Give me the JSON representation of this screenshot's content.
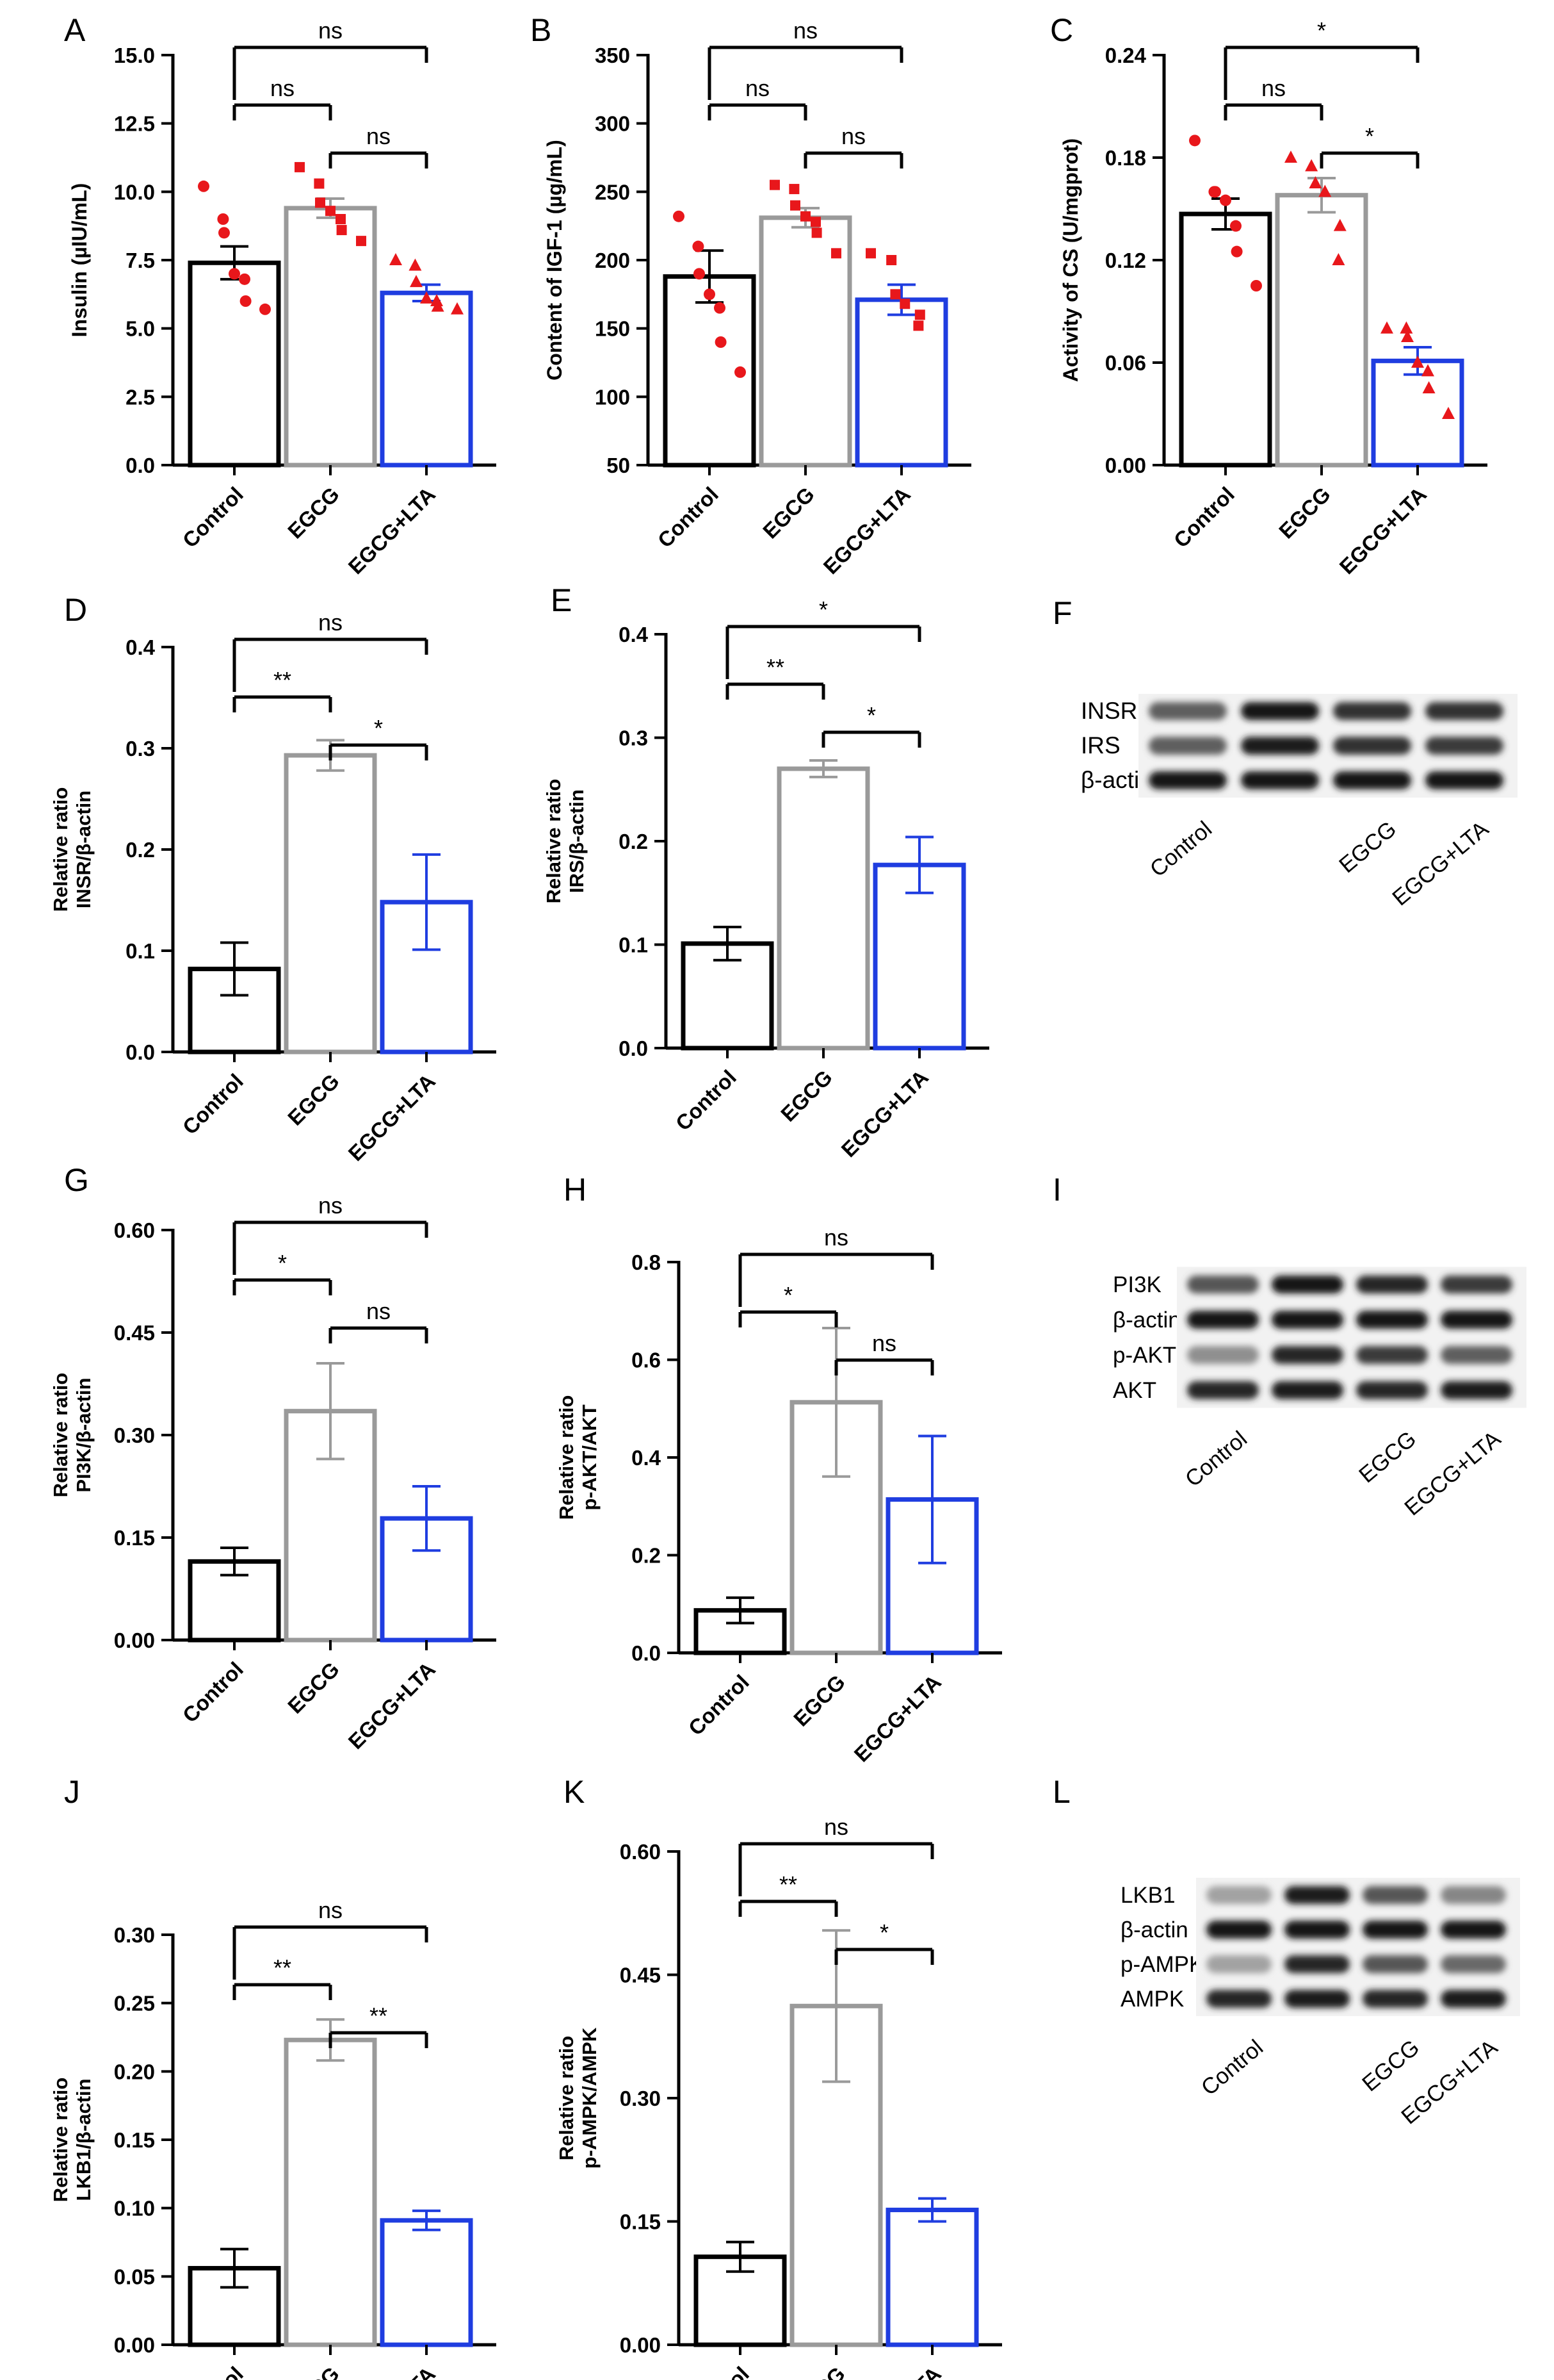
{
  "figure": {
    "colors": {
      "control": "#000000",
      "egcg": "#9a9a9a",
      "egcg_lta": "#1f3de0",
      "dots": "#e8171b",
      "axis": "#000000"
    }
  },
  "chart_data": [
    {
      "panel": "A",
      "type": "bar",
      "ylabel": "Insulin (µIU/mL)",
      "categories": [
        "Control",
        "EGCG",
        "EGCG+LTA"
      ],
      "yticks": [
        "0.0",
        "2.5",
        "5.0",
        "7.5",
        "10.0",
        "12.5",
        "15.0"
      ],
      "ylim": [
        0,
        15
      ],
      "values": [
        7.4,
        9.4,
        6.3
      ],
      "errors": [
        0.6,
        0.35,
        0.3
      ],
      "points": [
        [
          10.2,
          9.0,
          8.5,
          7.0,
          6.8,
          6.0,
          5.7
        ],
        [
          10.9,
          10.3,
          9.6,
          9.3,
          9.0,
          8.6,
          8.2
        ],
        [
          7.5,
          7.3,
          6.7,
          6.1,
          6.0,
          5.8,
          5.7
        ]
      ],
      "point_style": "triangle",
      "significance": [
        {
          "from": 0,
          "to": 2,
          "label": "ns"
        },
        {
          "from": 0,
          "to": 1,
          "label": "ns"
        },
        {
          "from": 1,
          "to": 2,
          "label": "ns"
        }
      ]
    },
    {
      "panel": "B",
      "type": "bar",
      "ylabel": "Content of IGF-1 (µg/mL)",
      "categories": [
        "Control",
        "EGCG",
        "EGCG+LTA"
      ],
      "yticks": [
        "50",
        "100",
        "150",
        "200",
        "250",
        "300",
        "350"
      ],
      "ylim": [
        50,
        350
      ],
      "values": [
        188,
        231,
        171
      ],
      "errors": [
        19,
        7,
        11
      ],
      "points": [
        [
          232,
          210,
          190,
          175,
          165,
          140,
          118
        ],
        [
          255,
          252,
          240,
          232,
          228,
          220,
          205
        ],
        [
          205,
          200,
          175,
          168,
          160,
          152
        ]
      ],
      "point_style": "square",
      "significance": [
        {
          "from": 0,
          "to": 2,
          "label": "ns"
        },
        {
          "from": 0,
          "to": 1,
          "label": "ns"
        },
        {
          "from": 1,
          "to": 2,
          "label": "ns"
        }
      ]
    },
    {
      "panel": "C",
      "type": "bar",
      "ylabel": "Activity of CS (U/mgprot)",
      "categories": [
        "Control",
        "EGCG",
        "EGCG+LTA"
      ],
      "yticks": [
        "0.00",
        "0.06",
        "0.12",
        "0.18",
        "0.24"
      ],
      "ylim": [
        0,
        0.24
      ],
      "values": [
        0.147,
        0.158,
        0.061
      ],
      "errors": [
        0.009,
        0.01,
        0.008
      ],
      "points": [
        [
          0.19,
          0.16,
          0.16,
          0.155,
          0.14,
          0.125,
          0.105
        ],
        [
          0.18,
          0.175,
          0.165,
          0.16,
          0.14,
          0.12
        ],
        [
          0.08,
          0.08,
          0.075,
          0.06,
          0.055,
          0.045,
          0.03
        ]
      ],
      "point_style": "triangle",
      "significance": [
        {
          "from": 0,
          "to": 2,
          "label": "*"
        },
        {
          "from": 0,
          "to": 1,
          "label": "ns"
        },
        {
          "from": 1,
          "to": 2,
          "label": "*"
        }
      ]
    },
    {
      "panel": "D",
      "type": "bar",
      "ylabel_lines": [
        "Relative ratio",
        "INSR/β-actin"
      ],
      "categories": [
        "Control",
        "EGCG",
        "EGCG+LTA"
      ],
      "yticks": [
        "0.0",
        "0.1",
        "0.2",
        "0.3",
        "0.4"
      ],
      "ylim": [
        0,
        0.4
      ],
      "values": [
        0.082,
        0.293,
        0.148
      ],
      "errors": [
        0.026,
        0.015,
        0.047
      ],
      "significance": [
        {
          "from": 0,
          "to": 2,
          "label": "ns"
        },
        {
          "from": 0,
          "to": 1,
          "label": "**"
        },
        {
          "from": 1,
          "to": 2,
          "label": "*"
        }
      ]
    },
    {
      "panel": "E",
      "type": "bar",
      "ylabel_lines": [
        "Relative ratio",
        "IRS/β-actin"
      ],
      "categories": [
        "Control",
        "EGCG",
        "EGCG+LTA"
      ],
      "yticks": [
        "0.0",
        "0.1",
        "0.2",
        "0.3",
        "0.4"
      ],
      "ylim": [
        0,
        0.4
      ],
      "values": [
        0.101,
        0.27,
        0.177
      ],
      "errors": [
        0.016,
        0.008,
        0.027
      ],
      "significance": [
        {
          "from": 0,
          "to": 2,
          "label": "*"
        },
        {
          "from": 0,
          "to": 1,
          "label": "**"
        },
        {
          "from": 1,
          "to": 2,
          "label": "*"
        }
      ]
    },
    {
      "panel": "G",
      "type": "bar",
      "ylabel_lines": [
        "Relative ratio",
        "PI3K/β-actin"
      ],
      "categories": [
        "Control",
        "EGCG",
        "EGCG+LTA"
      ],
      "yticks": [
        "0.00",
        "0.15",
        "0.30",
        "0.45",
        "0.60"
      ],
      "ylim": [
        0,
        0.6
      ],
      "values": [
        0.115,
        0.335,
        0.178
      ],
      "errors": [
        0.02,
        0.07,
        0.047
      ],
      "significance": [
        {
          "from": 0,
          "to": 2,
          "label": "ns"
        },
        {
          "from": 0,
          "to": 1,
          "label": "*"
        },
        {
          "from": 1,
          "to": 2,
          "label": "ns"
        }
      ]
    },
    {
      "panel": "H",
      "type": "bar",
      "ylabel_lines": [
        "Relative ratio",
        "p-AKT/AKT"
      ],
      "categories": [
        "Control",
        "EGCG",
        "EGCG+LTA"
      ],
      "yticks": [
        "0.0",
        "0.2",
        "0.4",
        "0.6",
        "0.8"
      ],
      "ylim": [
        0,
        0.8
      ],
      "values": [
        0.087,
        0.513,
        0.314
      ],
      "errors": [
        0.026,
        0.152,
        0.13
      ],
      "significance": [
        {
          "from": 0,
          "to": 2,
          "label": "ns"
        },
        {
          "from": 0,
          "to": 1,
          "label": "*"
        },
        {
          "from": 1,
          "to": 2,
          "label": "ns"
        }
      ]
    },
    {
      "panel": "J",
      "type": "bar",
      "ylabel_lines": [
        "Relative ratio",
        "LKB1/β-actin"
      ],
      "categories": [
        "Control",
        "EGCG",
        "EGCG+LTA"
      ],
      "yticks": [
        "0.00",
        "0.05",
        "0.10",
        "0.15",
        "0.20",
        "0.25",
        "0.30"
      ],
      "ylim": [
        0,
        0.3
      ],
      "values": [
        0.056,
        0.223,
        0.091
      ],
      "errors": [
        0.014,
        0.015,
        0.007
      ],
      "significance": [
        {
          "from": 0,
          "to": 2,
          "label": "ns"
        },
        {
          "from": 0,
          "to": 1,
          "label": "**"
        },
        {
          "from": 1,
          "to": 2,
          "label": "**"
        }
      ]
    },
    {
      "panel": "K",
      "type": "bar",
      "ylabel_lines": [
        "Relative ratio",
        "p-AMPK/AMPK"
      ],
      "categories": [
        "Control",
        "EGCG",
        "EGCG+LTA"
      ],
      "yticks": [
        "0.00",
        "0.15",
        "0.30",
        "0.45",
        "0.60"
      ],
      "ylim": [
        0,
        0.6
      ],
      "values": [
        0.107,
        0.412,
        0.164
      ],
      "errors": [
        0.018,
        0.092,
        0.014
      ],
      "significance": [
        {
          "from": 0,
          "to": 2,
          "label": "ns"
        },
        {
          "from": 0,
          "to": 1,
          "label": "**"
        },
        {
          "from": 1,
          "to": 2,
          "label": "*"
        }
      ]
    }
  ],
  "blots": [
    {
      "panel": "F",
      "bands": [
        "INSR",
        "IRS",
        "β-actin"
      ],
      "intensity": [
        [
          0.55,
          0.95,
          0.8,
          0.8
        ],
        [
          0.55,
          0.9,
          0.8,
          0.75
        ],
        [
          0.95,
          0.95,
          0.95,
          0.95
        ]
      ],
      "lane_labels": [
        "Control",
        "EGCG",
        "EGCG+LTA"
      ]
    },
    {
      "panel": "I",
      "bands": [
        "PI3K",
        "β-actin",
        "p-AKT",
        "AKT"
      ],
      "intensity": [
        [
          0.6,
          0.95,
          0.85,
          0.75
        ],
        [
          0.95,
          0.95,
          0.95,
          0.95
        ],
        [
          0.3,
          0.85,
          0.75,
          0.55
        ],
        [
          0.85,
          0.9,
          0.85,
          0.9
        ]
      ],
      "lane_labels": [
        "Control",
        "EGCG",
        "EGCG+LTA"
      ]
    },
    {
      "panel": "L",
      "bands": [
        "LKB1",
        "β-actin",
        "p-AMPK",
        "AMPK"
      ],
      "intensity": [
        [
          0.2,
          0.9,
          0.6,
          0.35
        ],
        [
          0.95,
          0.95,
          0.95,
          0.95
        ],
        [
          0.2,
          0.85,
          0.6,
          0.5
        ],
        [
          0.85,
          0.9,
          0.85,
          0.9
        ]
      ],
      "lane_labels": [
        "Control",
        "EGCG",
        "EGCG+LTA"
      ]
    }
  ]
}
